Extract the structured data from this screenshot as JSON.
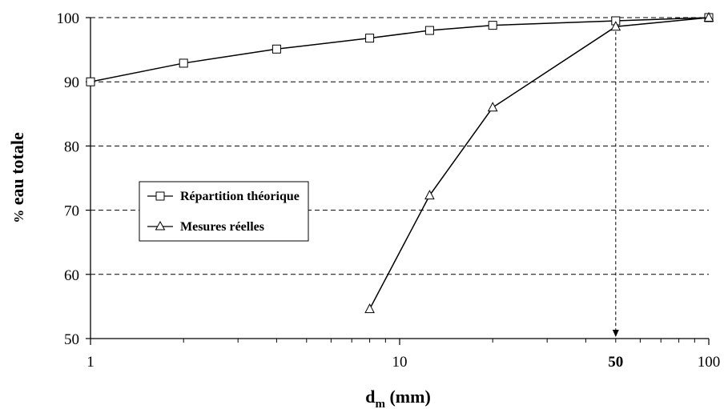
{
  "chart_data": {
    "type": "line",
    "xscale": "log",
    "xlim": [
      1,
      100
    ],
    "ylim": [
      50,
      100
    ],
    "xticks": [
      1,
      10,
      100
    ],
    "yticks": [
      50,
      60,
      70,
      80,
      90,
      100
    ],
    "xlabel": {
      "main": "d",
      "sub": "m",
      "rest": " (mm)"
    },
    "ylabel": "% eau totale",
    "grid": {
      "y": "dashed",
      "x": false
    },
    "legend_position": "center-left",
    "series": [
      {
        "name": "Répartition théorique",
        "marker": "square",
        "x": [
          1,
          2,
          4,
          8,
          12.5,
          20,
          50,
          100
        ],
        "y": [
          90,
          92.9,
          95.1,
          96.8,
          98,
          98.8,
          99.5,
          100
        ]
      },
      {
        "name": "Mesures réelles",
        "marker": "triangle",
        "x": [
          8,
          12.5,
          20,
          50,
          100
        ],
        "y": [
          54.6,
          72.3,
          86,
          98.6,
          100
        ]
      }
    ],
    "annotations": [
      {
        "type": "dashed-arrow-to-x-axis",
        "x": 50,
        "label": "50"
      }
    ]
  },
  "colors": {
    "line": "#000000",
    "grid": "#000000",
    "background": "#ffffff"
  }
}
